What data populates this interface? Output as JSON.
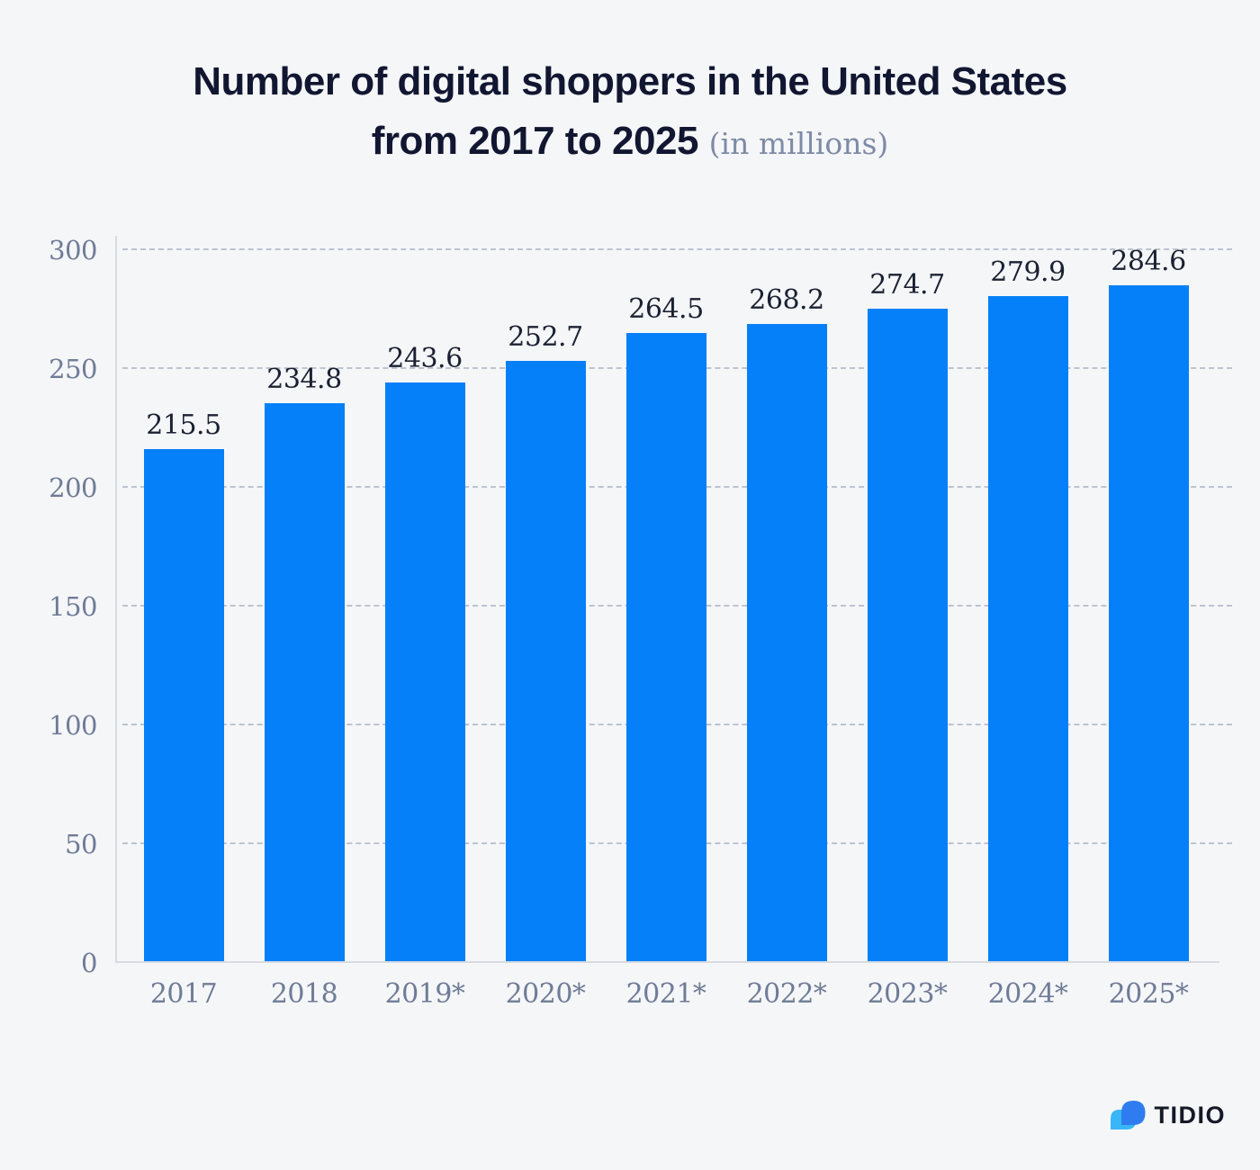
{
  "page": {
    "background_color": "#f5f6f8"
  },
  "title": {
    "line1": "Number of digital shoppers in the United States",
    "line2": "from 2017 to 2025",
    "subtitle": "(in millions)",
    "title_color": "#111731",
    "subtitle_color": "#7e8ba6"
  },
  "chart_data": {
    "type": "bar",
    "title": "Number of digital shoppers in the United States from 2017 to 2025",
    "subtitle": "(in millions)",
    "categories": [
      "2017",
      "2018",
      "2019*",
      "2020*",
      "2021*",
      "2022*",
      "2023*",
      "2024*",
      "2025*"
    ],
    "values": [
      215.5,
      234.8,
      243.6,
      252.7,
      264.5,
      268.2,
      274.7,
      279.9,
      284.6
    ],
    "data_labels": [
      "215.5",
      "234.8",
      "243.6",
      "252.7",
      "264.5",
      "268.2",
      "274.7",
      "279.9",
      "284.6"
    ],
    "xlabel": "",
    "ylabel": "",
    "ylim": [
      0,
      300
    ],
    "yticks": [
      0,
      50,
      100,
      150,
      200,
      250,
      300
    ],
    "grid": "horizontal-dashed",
    "legend": "none",
    "bar_color": "#0580f8",
    "tick_color": "#6f7c97",
    "value_label_color": "#1a2132",
    "gridline_color": "#bcc4cf",
    "axis_line_color": "#d7dbe2"
  },
  "logo": {
    "text": "TIDIO",
    "icon": "tidio-chat-bubbles-icon",
    "text_color": "#141927",
    "bubble_dark_color": "#2e7cf0",
    "bubble_light_color": "#38b6f6"
  }
}
